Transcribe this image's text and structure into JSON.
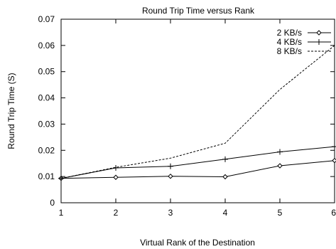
{
  "chart_data": {
    "type": "line",
    "title": "Round Trip Time versus Rank",
    "xlabel": "Virtual Rank of the Destination",
    "ylabel": "Round Trip Time (S)",
    "x": [
      1,
      2,
      3,
      4,
      5,
      6
    ],
    "xlim": [
      1,
      6
    ],
    "ylim": [
      0,
      0.07
    ],
    "xticks": [
      "1",
      "2",
      "3",
      "4",
      "5",
      "6"
    ],
    "yticks": [
      "0",
      "0.01",
      "0.02",
      "0.03",
      "0.04",
      "0.05",
      "0.06",
      "0.07"
    ],
    "grid": false,
    "legend_position": "top-right",
    "series": [
      {
        "name": "2 KB/s",
        "style": "solid",
        "marker": "diamond",
        "values": [
          0.0093,
          0.0097,
          0.0101,
          0.0099,
          0.0141,
          0.0161
        ]
      },
      {
        "name": "4 KB/s",
        "style": "solid",
        "marker": "plus",
        "values": [
          0.0093,
          0.0133,
          0.0139,
          0.0166,
          0.0194,
          0.0214
        ]
      },
      {
        "name": "8 KB/s",
        "style": "dashed",
        "marker": "none",
        "values": [
          0.0093,
          0.0135,
          0.017,
          0.0227,
          0.0432,
          0.06
        ]
      }
    ]
  }
}
